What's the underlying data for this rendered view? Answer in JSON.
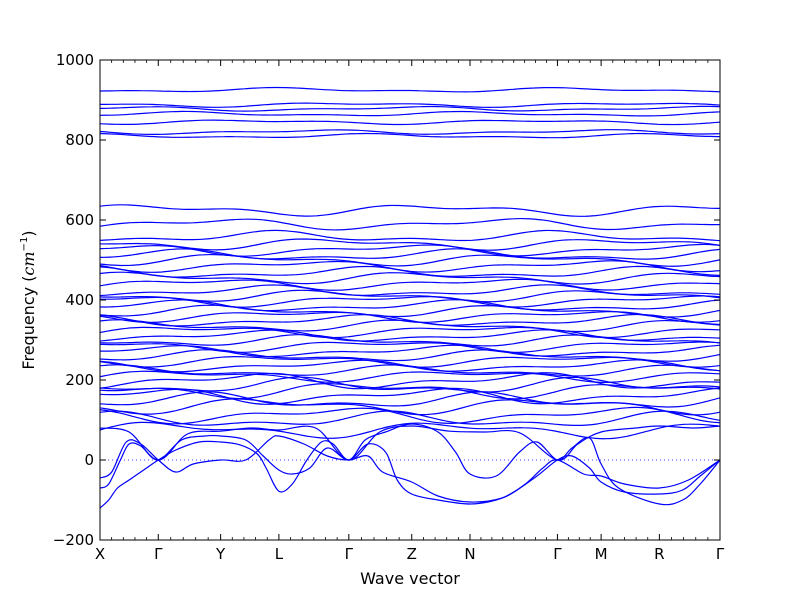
{
  "chart_data": {
    "type": "line",
    "xlabel": "Wave vector",
    "ylabel_text": "Frequency (",
    "ylabel_math": "cm",
    "ylabel_sup": "−1",
    "ylabel_close": ")",
    "ylim": [
      -200,
      1000
    ],
    "yticks": [
      -200,
      0,
      200,
      400,
      600,
      800,
      1000
    ],
    "yticklabels": [
      "−200",
      "0",
      "200",
      "400",
      "600",
      "800",
      "1000"
    ],
    "xlim": [
      0,
      10.64
    ],
    "high_symmetry_points": [
      {
        "label": "X",
        "x": 0
      },
      {
        "label": "Γ",
        "x": 1.0
      },
      {
        "label": "Y",
        "x": 2.07
      },
      {
        "label": "L",
        "x": 3.07
      },
      {
        "label": "Γ",
        "x": 4.27
      },
      {
        "label": "Z",
        "x": 5.35
      },
      {
        "label": "N",
        "x": 6.35
      },
      {
        "label": "Γ",
        "x": 7.85
      },
      {
        "label": "M",
        "x": 8.6
      },
      {
        "label": "R",
        "x": 9.6
      },
      {
        "label": "Γ",
        "x": 10.64
      }
    ],
    "zero_line": "dotted",
    "line_color": "#0000ff",
    "optical_band_frequencies": [
      75,
      100,
      112,
      135,
      148,
      160,
      175,
      185,
      198,
      210,
      222,
      235,
      248,
      260,
      272,
      285,
      298,
      310,
      322,
      335,
      348,
      360,
      372,
      385,
      398,
      410,
      422,
      440,
      455,
      468,
      485,
      500,
      512,
      525,
      540,
      558,
      590,
      625,
      810,
      820,
      845,
      865,
      878,
      888,
      925
    ],
    "acoustic_branches": [
      {
        "name": "",
        "points": [
          [
            0,
            -120
          ],
          [
            0.15,
            -100
          ],
          [
            0.3,
            -70
          ],
          [
            0.5,
            -50
          ],
          [
            0.75,
            -25
          ],
          [
            1.0,
            0
          ],
          [
            1.3,
            25
          ],
          [
            1.7,
            45
          ],
          [
            2.07,
            45
          ],
          [
            2.4,
            38
          ],
          [
            2.7,
            15
          ],
          [
            2.85,
            -20
          ],
          [
            3.07,
            -78
          ],
          [
            3.3,
            -60
          ],
          [
            3.55,
            0
          ],
          [
            3.8,
            45
          ],
          [
            4.0,
            40
          ],
          [
            4.27,
            0
          ],
          [
            4.6,
            40
          ],
          [
            4.9,
            20
          ],
          [
            5.1,
            -50
          ],
          [
            5.35,
            -85
          ],
          [
            5.8,
            -100
          ],
          [
            6.35,
            -110
          ],
          [
            6.8,
            -100
          ],
          [
            7.1,
            -80
          ],
          [
            7.5,
            -40
          ],
          [
            7.85,
            0
          ],
          [
            8.1,
            10
          ],
          [
            8.4,
            -20
          ],
          [
            8.6,
            -55
          ],
          [
            9.0,
            -80
          ],
          [
            9.6,
            -85
          ],
          [
            10.0,
            -75
          ],
          [
            10.3,
            -40
          ],
          [
            10.64,
            0
          ]
        ]
      },
      {
        "name": "",
        "points": [
          [
            0,
            -70
          ],
          [
            0.15,
            -60
          ],
          [
            0.35,
            0
          ],
          [
            0.5,
            40
          ],
          [
            0.7,
            35
          ],
          [
            1.0,
            0
          ],
          [
            1.4,
            50
          ],
          [
            1.8,
            60
          ],
          [
            2.07,
            60
          ],
          [
            2.5,
            50
          ],
          [
            2.8,
            10
          ],
          [
            3.07,
            -25
          ],
          [
            3.3,
            -35
          ],
          [
            3.6,
            -20
          ],
          [
            3.9,
            30
          ],
          [
            4.27,
            0
          ],
          [
            4.55,
            50
          ],
          [
            4.9,
            70
          ],
          [
            5.35,
            90
          ],
          [
            5.8,
            70
          ],
          [
            6.1,
            20
          ],
          [
            6.35,
            -35
          ],
          [
            6.8,
            -40
          ],
          [
            7.2,
            20
          ],
          [
            7.5,
            45
          ],
          [
            7.85,
            0
          ],
          [
            8.1,
            30
          ],
          [
            8.4,
            55
          ],
          [
            8.6,
            -10
          ],
          [
            8.9,
            -70
          ],
          [
            9.6,
            -110
          ],
          [
            10.0,
            -100
          ],
          [
            10.3,
            -60
          ],
          [
            10.64,
            0
          ]
        ]
      },
      {
        "name": "",
        "points": [
          [
            0,
            -45
          ],
          [
            0.2,
            -30
          ],
          [
            0.45,
            45
          ],
          [
            0.7,
            40
          ],
          [
            1.0,
            0
          ],
          [
            1.3,
            -30
          ],
          [
            1.6,
            -10
          ],
          [
            2.07,
            0
          ],
          [
            2.5,
            0
          ],
          [
            2.9,
            50
          ],
          [
            3.07,
            60
          ],
          [
            3.5,
            40
          ],
          [
            3.9,
            10
          ],
          [
            4.27,
            0
          ],
          [
            4.6,
            10
          ],
          [
            4.85,
            -30
          ],
          [
            5.35,
            -55
          ],
          [
            5.8,
            -90
          ],
          [
            6.35,
            -105
          ],
          [
            6.9,
            -95
          ],
          [
            7.3,
            -60
          ],
          [
            7.6,
            -20
          ],
          [
            7.85,
            0
          ],
          [
            8.3,
            -35
          ],
          [
            8.6,
            -40
          ],
          [
            9.0,
            -60
          ],
          [
            9.6,
            -70
          ],
          [
            10.1,
            -50
          ],
          [
            10.64,
            0
          ]
        ]
      },
      {
        "name": "",
        "points": [
          [
            0,
            80
          ],
          [
            0.5,
            70
          ],
          [
            1.0,
            0
          ],
          [
            1.5,
            65
          ],
          [
            2.07,
            72
          ],
          [
            2.6,
            80
          ],
          [
            3.07,
            75
          ],
          [
            3.7,
            80
          ],
          [
            4.27,
            0
          ],
          [
            4.8,
            70
          ],
          [
            5.35,
            85
          ],
          [
            6.0,
            72
          ],
          [
            6.6,
            70
          ],
          [
            7.2,
            68
          ],
          [
            7.85,
            0
          ],
          [
            8.2,
            40
          ],
          [
            8.6,
            70
          ],
          [
            9.2,
            80
          ],
          [
            9.6,
            85
          ],
          [
            10.2,
            80
          ],
          [
            10.64,
            85
          ]
        ]
      }
    ]
  }
}
